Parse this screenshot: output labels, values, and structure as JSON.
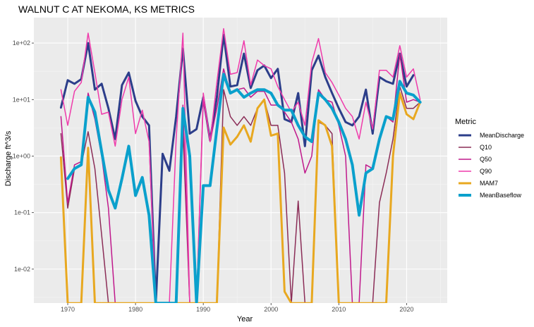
{
  "chart_data": {
    "type": "line",
    "title": "WALNUT C AT NEKOMA, KS  METRICS",
    "xlabel": "Year",
    "ylabel": "Discharge ft^3/s",
    "xlim": [
      1965,
      2026
    ],
    "ylim_log10": [
      -2.6,
      2.45
    ],
    "log_y": true,
    "x_ticks": [
      1970,
      1980,
      1990,
      2000,
      2010,
      2020
    ],
    "x_tick_labels": [
      "1970",
      "1980",
      "1990",
      "2000",
      "2010",
      "2020"
    ],
    "y_ticks": [
      0.01,
      0.1,
      1,
      10,
      100
    ],
    "y_tick_labels": [
      "1e-02",
      "1e-01",
      "1e+00",
      "1e+01",
      "1e+02"
    ],
    "grid": true,
    "legend": {
      "title": "Metric",
      "position": "right"
    },
    "x": [
      1969,
      1970,
      1971,
      1972,
      1973,
      1974,
      1975,
      1976,
      1977,
      1978,
      1979,
      1980,
      1981,
      1982,
      1983,
      1984,
      1985,
      1986,
      1987,
      1988,
      1989,
      1990,
      1991,
      1992,
      1993,
      1994,
      1995,
      1996,
      1997,
      1998,
      1999,
      2000,
      2001,
      2002,
      2003,
      2004,
      2005,
      2006,
      2007,
      2008,
      2009,
      2010,
      2011,
      2012,
      2013,
      2014,
      2015,
      2016,
      2017,
      2018,
      2019,
      2020,
      2021,
      2022
    ],
    "series": [
      {
        "name": "MeanDischarge",
        "color": "#2c3e8a",
        "width": 3,
        "values": [
          7.2,
          22,
          19,
          23,
          100,
          15,
          19,
          7,
          2,
          18,
          30,
          9.5,
          5,
          3.5,
          0.0025,
          1.1,
          0.55,
          5,
          80,
          2.5,
          3,
          11,
          1.9,
          11,
          140,
          17,
          18,
          65,
          16,
          33,
          40,
          24,
          35,
          4.5,
          4,
          13,
          1.5,
          33,
          60,
          25,
          13,
          7,
          4,
          3.5,
          5,
          15,
          2.5,
          25,
          21,
          19,
          65,
          17,
          27,
          null
        ]
      },
      {
        "name": "Q10",
        "color": "#8b2d57",
        "width": 1.5,
        "values": [
          2.5,
          0.12,
          0.6,
          0.7,
          2.7,
          0.6,
          0.04,
          0.0025,
          0.0025,
          0.0025,
          0.0025,
          0.0025,
          0.0025,
          0.0025,
          0.0025,
          0.0025,
          0.0025,
          0.0025,
          3,
          0.0025,
          0.0025,
          0.0025,
          0.0025,
          0.0025,
          15,
          5,
          3.5,
          5,
          3.5,
          7,
          10,
          3.5,
          3.5,
          0.5,
          0.0025,
          0.16,
          0.0025,
          0.0025,
          4,
          3.5,
          2.5,
          0.0025,
          0.0025,
          0.0025,
          0.0025,
          0.0025,
          0.0025,
          0.15,
          0.5,
          2,
          17,
          7,
          7,
          9
        ]
      },
      {
        "name": "Q50",
        "color": "#c0198c",
        "width": 1.5,
        "values": [
          5,
          0.15,
          0.7,
          0.8,
          13,
          4.5,
          1,
          0.12,
          0.0025,
          0.0025,
          0.0025,
          0.0025,
          0.0025,
          0.0025,
          0.0025,
          0.0025,
          0.0025,
          0.0025,
          8,
          0.0025,
          0.0025,
          10,
          1.8,
          7,
          35,
          13,
          15,
          16,
          11,
          14,
          14,
          8,
          8,
          6,
          4,
          2,
          0.5,
          1,
          15,
          10,
          9,
          3.5,
          1,
          0.0025,
          0.0025,
          0.7,
          0.6,
          2,
          5,
          4,
          65,
          9,
          10,
          9
        ]
      },
      {
        "name": "Q90",
        "color": "#ef3bab",
        "width": 1.5,
        "values": [
          15,
          3.5,
          14,
          20,
          150,
          30,
          5.5,
          6,
          1.5,
          10,
          25,
          2.5,
          6.5,
          1.8,
          0.0025,
          0.0025,
          0.0025,
          2,
          150,
          0.0025,
          0.0025,
          13,
          1.8,
          20,
          180,
          28,
          30,
          110,
          18,
          50,
          40,
          35,
          17,
          10,
          6,
          9,
          3.5,
          45,
          120,
          30,
          20,
          12,
          7,
          5,
          2,
          9,
          3,
          33,
          33,
          25,
          90,
          25,
          35,
          10
        ]
      },
      {
        "name": "MAM7",
        "color": "#e8a820",
        "width": 3,
        "values": [
          0.95,
          0.0025,
          0.0025,
          0.0025,
          1.4,
          0.0025,
          0.0025,
          0.0025,
          0.0025,
          0.0025,
          0.0025,
          0.0025,
          0.0025,
          0.0025,
          0.0025,
          0.0025,
          0.0025,
          0.0025,
          0.0025,
          0.0025,
          0.0025,
          0.0025,
          0.0025,
          0.0025,
          3.2,
          1.6,
          2.2,
          3.5,
          1.8,
          7,
          10,
          2.3,
          2.5,
          0.004,
          0.0025,
          0.0025,
          0.0025,
          0.0025,
          4.3,
          3.5,
          1.5,
          0.0025,
          0.0025,
          0.0025,
          0.0025,
          0.0025,
          0.0025,
          0.0025,
          0.0025,
          1,
          13,
          5.5,
          4.5,
          9
        ]
      },
      {
        "name": "MeanBaseflow",
        "color": "#0aa0cc",
        "width": 4,
        "values": [
          null,
          0.4,
          0.6,
          0.7,
          11,
          6,
          1.2,
          0.25,
          0.12,
          0.4,
          1.5,
          0.2,
          0.42,
          0.09,
          0.0025,
          0.0025,
          0.0025,
          0.0025,
          7,
          1,
          0.0025,
          0.3,
          0.3,
          3,
          28,
          13,
          15,
          11,
          13,
          15,
          15,
          13,
          8,
          6.5,
          6.5,
          3.5,
          2.2,
          1.8,
          13,
          10,
          7,
          4,
          2,
          0.7,
          0.09,
          0.5,
          0.6,
          2,
          5,
          4.5,
          21,
          13,
          12,
          9
        ]
      }
    ]
  }
}
